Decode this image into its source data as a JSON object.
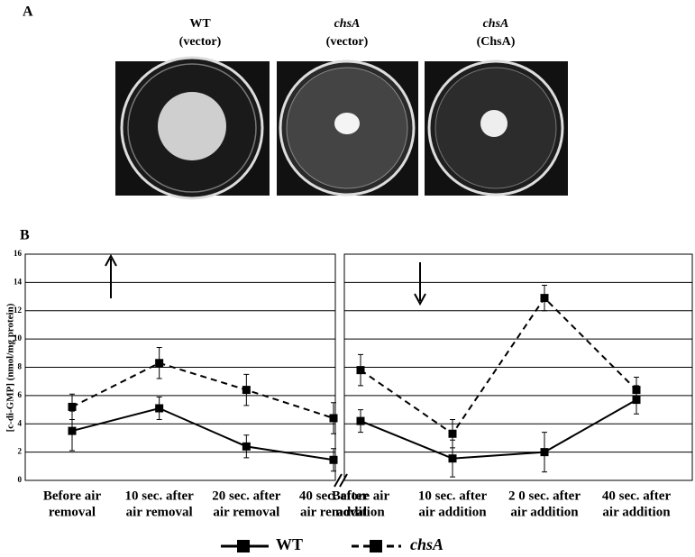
{
  "panel_a": {
    "label": "A",
    "plates": [
      {
        "strain": "WT",
        "plasmid": "(vector)"
      },
      {
        "strain": "chsA",
        "plasmid": "(vector)"
      },
      {
        "strain": "chsA",
        "plasmid": "(ChsA)"
      }
    ]
  },
  "chart_data": {
    "type": "line",
    "panel_label": "B",
    "y_label": "[c-di-GMP] (nmol/mg protein)",
    "categories": [
      [
        "Before air",
        "removal"
      ],
      [
        "10 sec. after",
        "air removal"
      ],
      [
        "20 sec. after",
        "air removal"
      ],
      [
        "40 sec. after",
        "air removal"
      ],
      [
        "Before air",
        "addition"
      ],
      [
        "10 sec. after",
        "air addition"
      ],
      [
        "2 0 sec. after",
        "air addition"
      ],
      [
        "40 sec. after",
        "air addition"
      ]
    ],
    "x_break": 4,
    "series": [
      {
        "name": "WT",
        "color": "#000000",
        "dash": false,
        "values": [
          3.5,
          5.1,
          2.4,
          1.45,
          4.2,
          1.55,
          2.0,
          5.7
        ],
        "errors": [
          1.4,
          0.8,
          0.8,
          0.8,
          0.8,
          1.3,
          1.4,
          1.0
        ]
      },
      {
        "name": "chsA",
        "color": "#000000",
        "dash": true,
        "values": [
          5.2,
          8.3,
          6.4,
          4.4,
          7.8,
          3.3,
          12.9,
          6.4
        ],
        "errors": [
          0.9,
          1.1,
          1.1,
          1.1,
          1.1,
          1.0,
          0.9,
          0.9
        ]
      }
    ],
    "ylim": [
      0,
      16
    ],
    "yticks": [
      0,
      2,
      4,
      6,
      8,
      10,
      12,
      14,
      16
    ],
    "grid": true
  }
}
